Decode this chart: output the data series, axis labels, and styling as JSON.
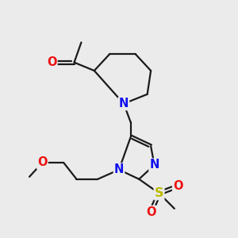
{
  "bg_color": "#ebebeb",
  "bond_color": "#1a1a1a",
  "bond_width": 1.6,
  "atom_colors": {
    "N": "#1010ee",
    "O": "#ee1010",
    "S": "#bbbb00",
    "C": "#1a1a1a"
  },
  "font_size_atom": 10.5,
  "figsize": [
    3.0,
    3.0
  ],
  "dpi": 100
}
